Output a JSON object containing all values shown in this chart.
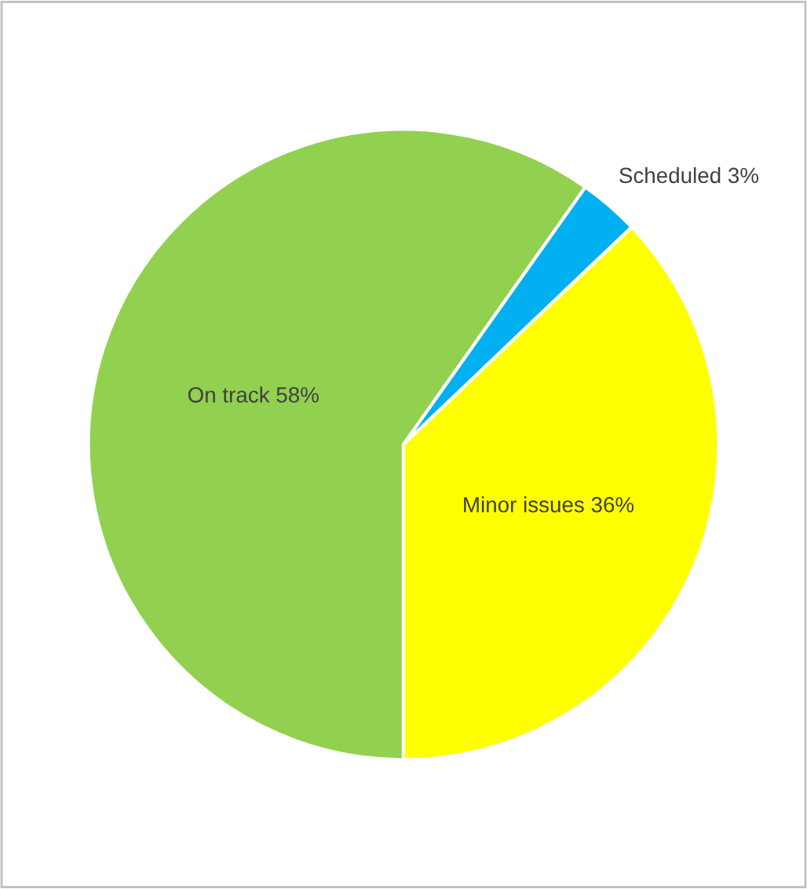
{
  "chart_data": {
    "type": "pie",
    "categories": [
      "On track",
      "Scheduled",
      "Minor issues"
    ],
    "values": [
      58,
      3,
      36
    ],
    "colors": [
      "#92d050",
      "#00b0f0",
      "#ffff00"
    ],
    "value_labels": [
      "58%",
      "3%",
      "36%"
    ]
  }
}
